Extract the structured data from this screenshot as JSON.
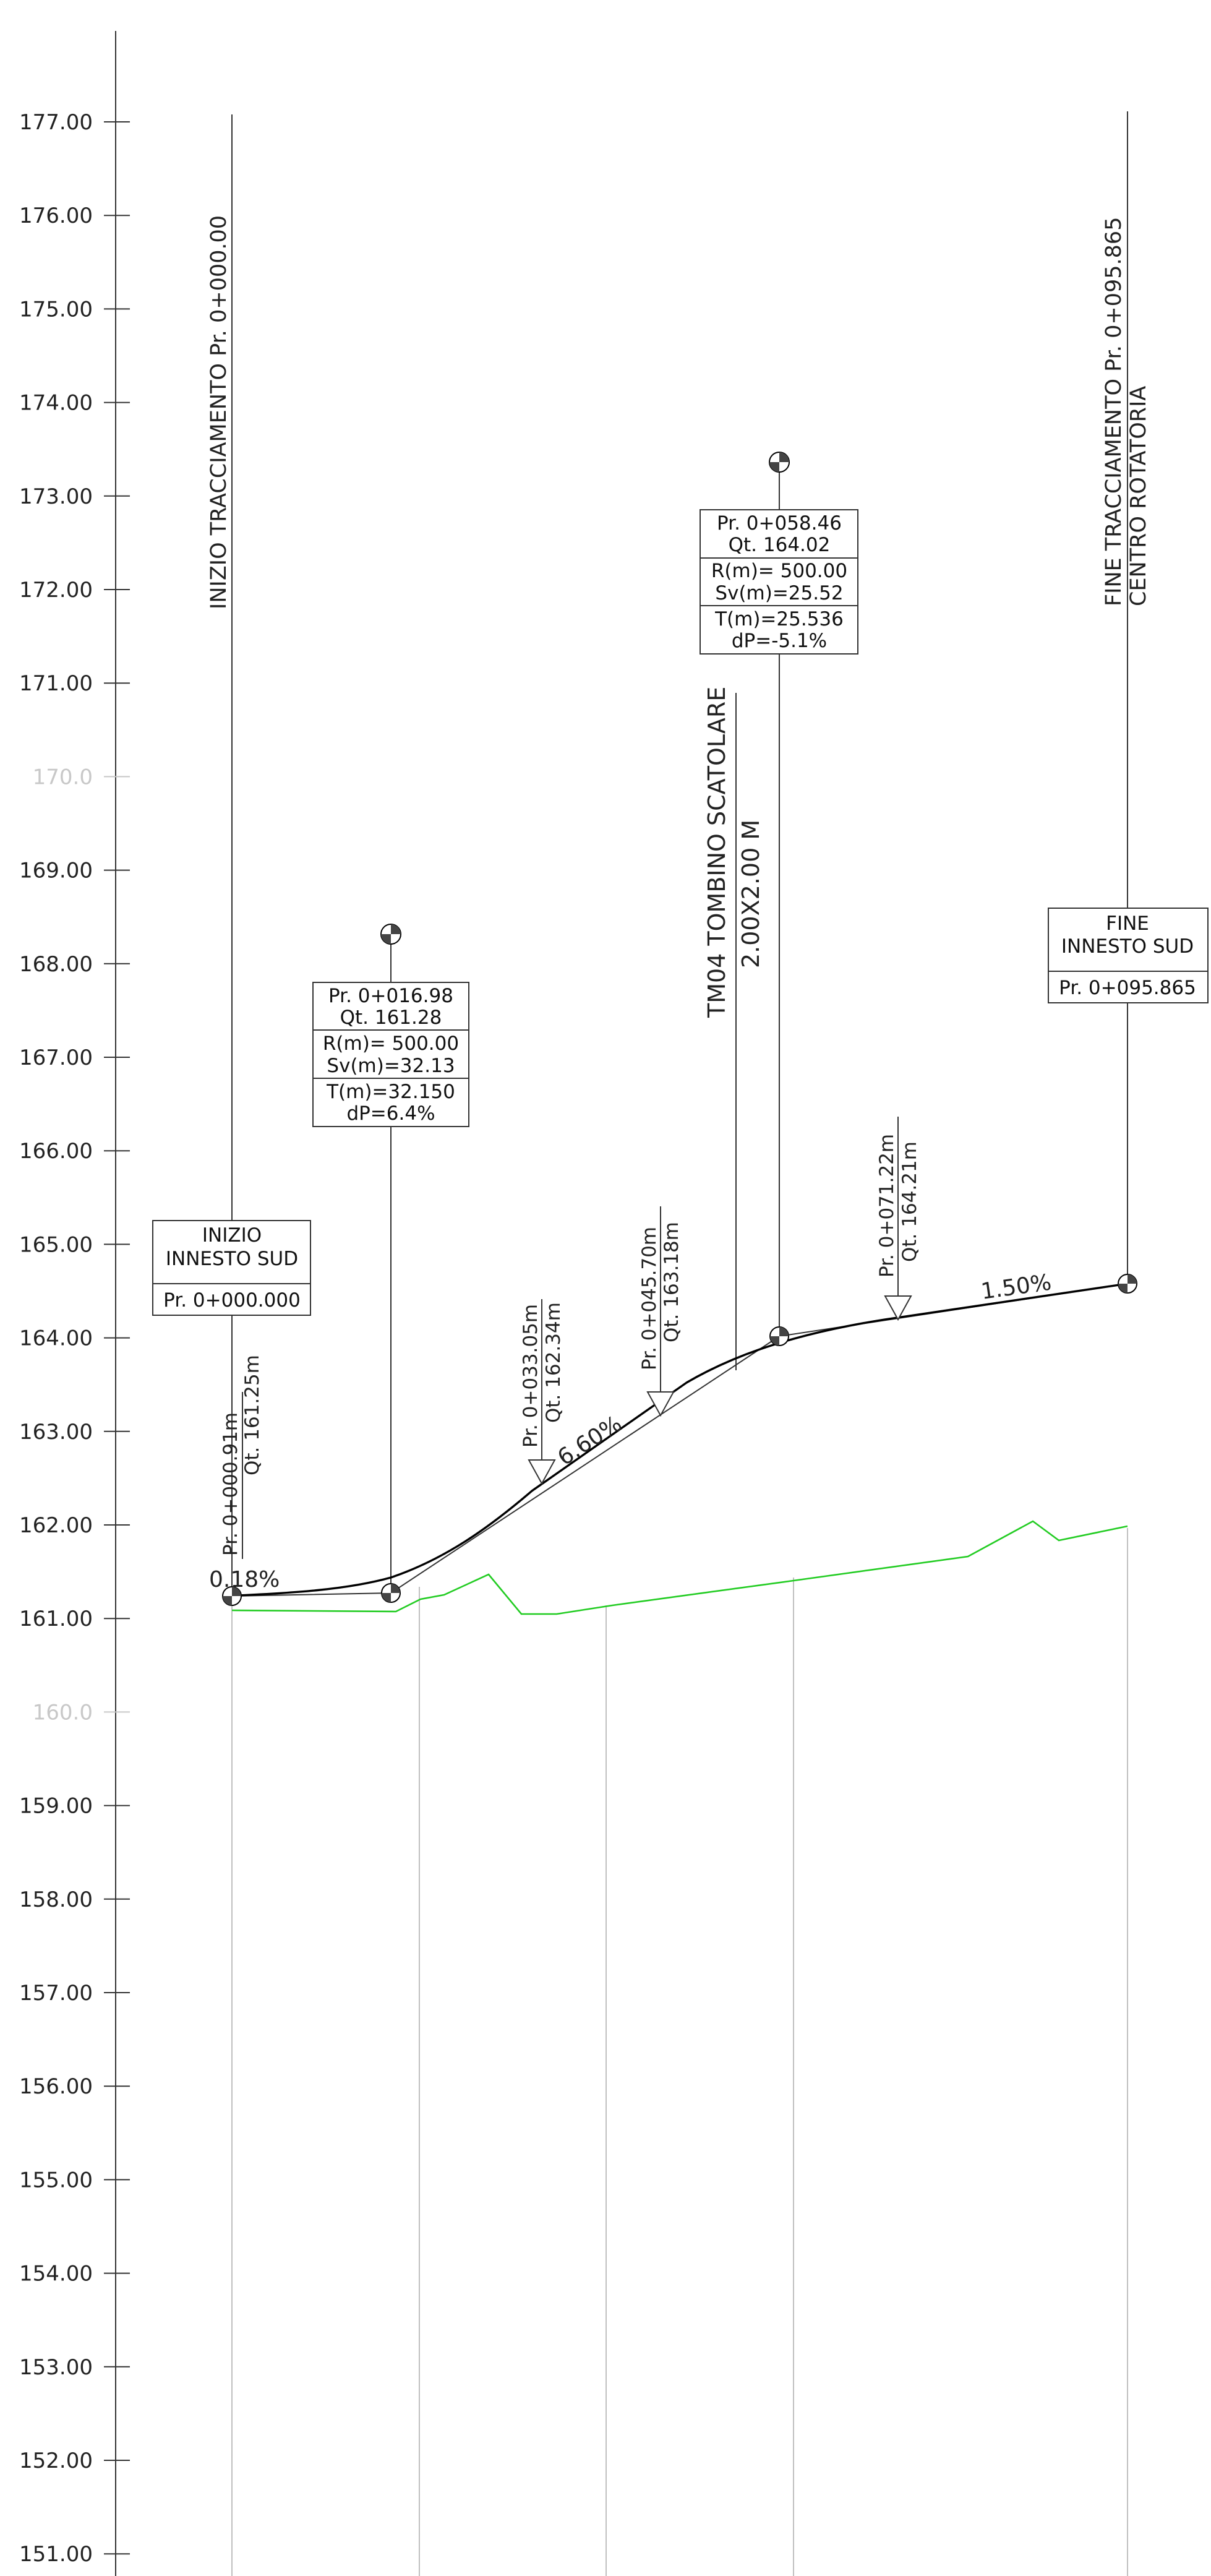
{
  "elevation_axis": {
    "ticks": [
      {
        "v": 177,
        "label": "177.00",
        "faint": false
      },
      {
        "v": 176,
        "label": "176.00",
        "faint": false
      },
      {
        "v": 175,
        "label": "175.00",
        "faint": false
      },
      {
        "v": 174,
        "label": "174.00",
        "faint": false
      },
      {
        "v": 173,
        "label": "173.00",
        "faint": false
      },
      {
        "v": 172,
        "label": "172.00",
        "faint": false
      },
      {
        "v": 171,
        "label": "171.00",
        "faint": false
      },
      {
        "v": 170,
        "label": "170.0",
        "faint": true
      },
      {
        "v": 169,
        "label": "169.00",
        "faint": false
      },
      {
        "v": 168,
        "label": "168.00",
        "faint": false
      },
      {
        "v": 167,
        "label": "167.00",
        "faint": false
      },
      {
        "v": 166,
        "label": "166.00",
        "faint": false
      },
      {
        "v": 165,
        "label": "165.00",
        "faint": false
      },
      {
        "v": 164,
        "label": "164.00",
        "faint": false
      },
      {
        "v": 163,
        "label": "163.00",
        "faint": false
      },
      {
        "v": 162,
        "label": "162.00",
        "faint": false
      },
      {
        "v": 161,
        "label": "161.00",
        "faint": false
      },
      {
        "v": 160,
        "label": "160.0",
        "faint": true
      },
      {
        "v": 159,
        "label": "159.00",
        "faint": false
      },
      {
        "v": 158,
        "label": "158.00",
        "faint": false
      },
      {
        "v": 157,
        "label": "157.00",
        "faint": false
      },
      {
        "v": 156,
        "label": "156.00",
        "faint": false
      },
      {
        "v": 155,
        "label": "155.00",
        "faint": false
      },
      {
        "v": 154,
        "label": "154.00",
        "faint": false
      },
      {
        "v": 153,
        "label": "153.00",
        "faint": false
      },
      {
        "v": 152,
        "label": "152.00",
        "faint": false
      },
      {
        "v": 151,
        "label": "151.00",
        "faint": false
      }
    ]
  },
  "vertical_labels": {
    "start": "INIZIO  TRACCIAMENTO  Pr.  0+000.00",
    "end_line1": "FINE  TRACCIAMENTO  Pr.  0+095.865",
    "end_line2": "CENTRO  ROTATORIA",
    "culvert_line1": "TM04  TOMBINO  SCATOLARE",
    "culvert_line2": "2.00X2.00  M"
  },
  "start_box": {
    "line1": "INIZIO",
    "line2": "INNESTO  SUD",
    "line3": "Pr.  0+000.000"
  },
  "end_box": {
    "line1": "FINE",
    "line2": "INNESTO  SUD",
    "line3": "Pr.  0+095.865"
  },
  "vertex1": {
    "pr": "Pr.  0+016.98",
    "qt": "Qt.  161.28",
    "r": "R(m)=  500.00",
    "sv": "Sv(m)=32.13",
    "t": "T(m)=32.150",
    "dp": "dP=6.4%"
  },
  "vertex2": {
    "pr": "Pr.  0+058.46",
    "qt": "Qt.  164.02",
    "r": "R(m)=  500.00",
    "sv": "Sv(m)=25.52",
    "t": "T(m)=25.536",
    "dp": "dP=-5.1%"
  },
  "points": [
    {
      "pr": "Pr.  0+000.91m",
      "qt": "Qt.  161.25m"
    },
    {
      "pr": "Pr.  0+033.05m",
      "qt": "Qt.  162.34m"
    },
    {
      "pr": "Pr.  0+045.70m",
      "qt": "Qt.  163.18m"
    },
    {
      "pr": "Pr.  0+071.22m",
      "qt": "Qt.  164.21m"
    }
  ],
  "slopes": {
    "s1": "0.18%",
    "s2": "6.60%",
    "s3": "1.50%"
  },
  "colors": {
    "ground": "#22cc22",
    "profile": "#000000",
    "axis": "#333333"
  }
}
